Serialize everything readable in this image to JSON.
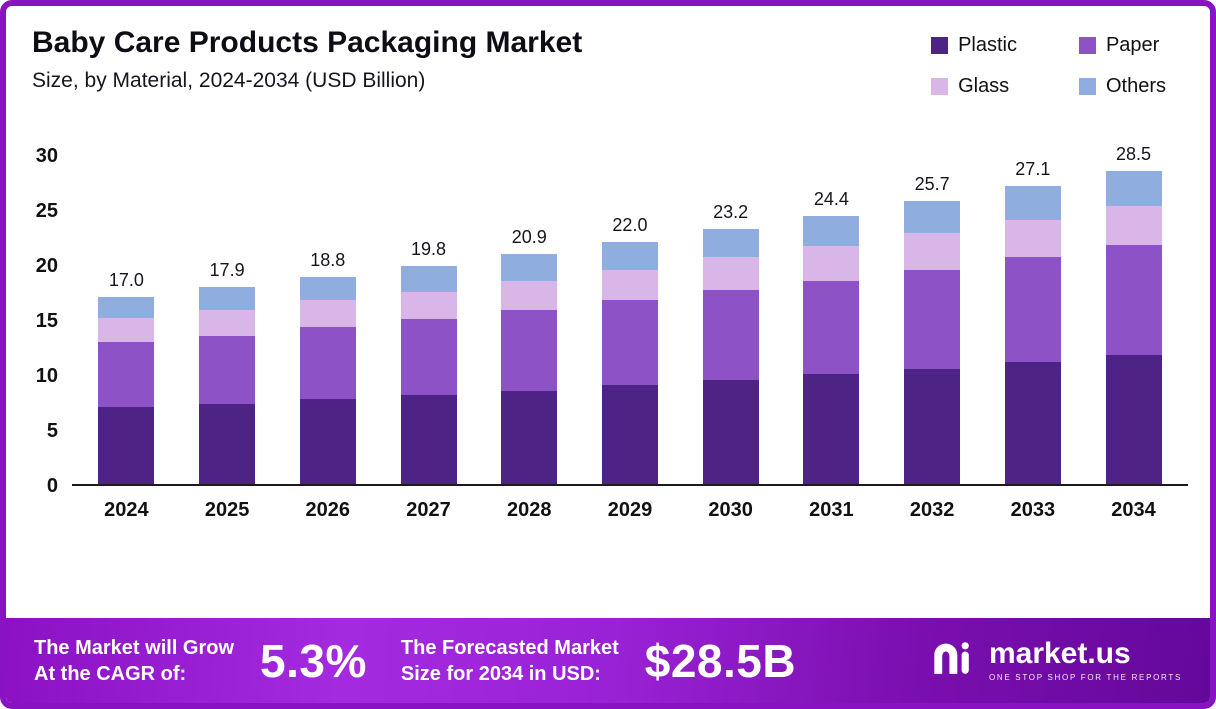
{
  "header": {
    "title": "Baby Care Products Packaging Market",
    "subtitle": "Size, by Material, 2024-2034 (USD Billion)"
  },
  "chart_data": {
    "type": "bar",
    "stacked": true,
    "title": "Baby Care Products Packaging Market Size, by Material, 2024-2034 (USD Billion)",
    "xlabel": "",
    "ylabel": "",
    "ylim": [
      0,
      30
    ],
    "yticks": [
      0,
      5,
      10,
      15,
      20,
      25,
      30
    ],
    "grid": false,
    "legend_position": "top-right",
    "categories": [
      "2024",
      "2025",
      "2026",
      "2027",
      "2028",
      "2029",
      "2030",
      "2031",
      "2032",
      "2033",
      "2034"
    ],
    "series": [
      {
        "name": "Plastic",
        "color": "#4D2486",
        "values": [
          7.0,
          7.3,
          7.7,
          8.1,
          8.5,
          9.0,
          9.5,
          10.0,
          10.5,
          11.1,
          11.7
        ]
      },
      {
        "name": "Paper",
        "color": "#8D52C6",
        "values": [
          5.9,
          6.2,
          6.6,
          6.9,
          7.3,
          7.7,
          8.1,
          8.5,
          9.0,
          9.5,
          10.0
        ]
      },
      {
        "name": "Glass",
        "color": "#D9B6E8",
        "values": [
          2.2,
          2.3,
          2.4,
          2.5,
          2.7,
          2.8,
          3.0,
          3.1,
          3.3,
          3.4,
          3.6
        ]
      },
      {
        "name": "Others",
        "color": "#8FADDE",
        "values": [
          1.9,
          2.1,
          2.1,
          2.3,
          2.4,
          2.5,
          2.6,
          2.8,
          2.9,
          3.1,
          3.2
        ]
      }
    ],
    "totals": [
      17.0,
      17.9,
      18.8,
      19.8,
      20.9,
      22.0,
      23.2,
      24.4,
      25.7,
      27.1,
      28.5
    ],
    "total_labels": [
      "17.0",
      "17.9",
      "18.8",
      "19.8",
      "20.9",
      "22.0",
      "23.2",
      "24.4",
      "25.7",
      "27.1",
      "28.5"
    ]
  },
  "banner": {
    "cagr_label_line1": "The Market will Grow",
    "cagr_label_line2": "At the CAGR of:",
    "cagr_value": "5.3%",
    "forecast_label_line1": "The Forecasted Market",
    "forecast_label_line2": "Size for 2034 in USD:",
    "forecast_value": "$28.5B",
    "brand": "market.us",
    "brand_tagline": "ONE STOP SHOP FOR THE REPORTS"
  },
  "colors": {
    "frame_border": "#8912c2",
    "axis_line": "#1a1a22",
    "text_dark": "#111111",
    "banner_purple": "#8c11c4"
  }
}
